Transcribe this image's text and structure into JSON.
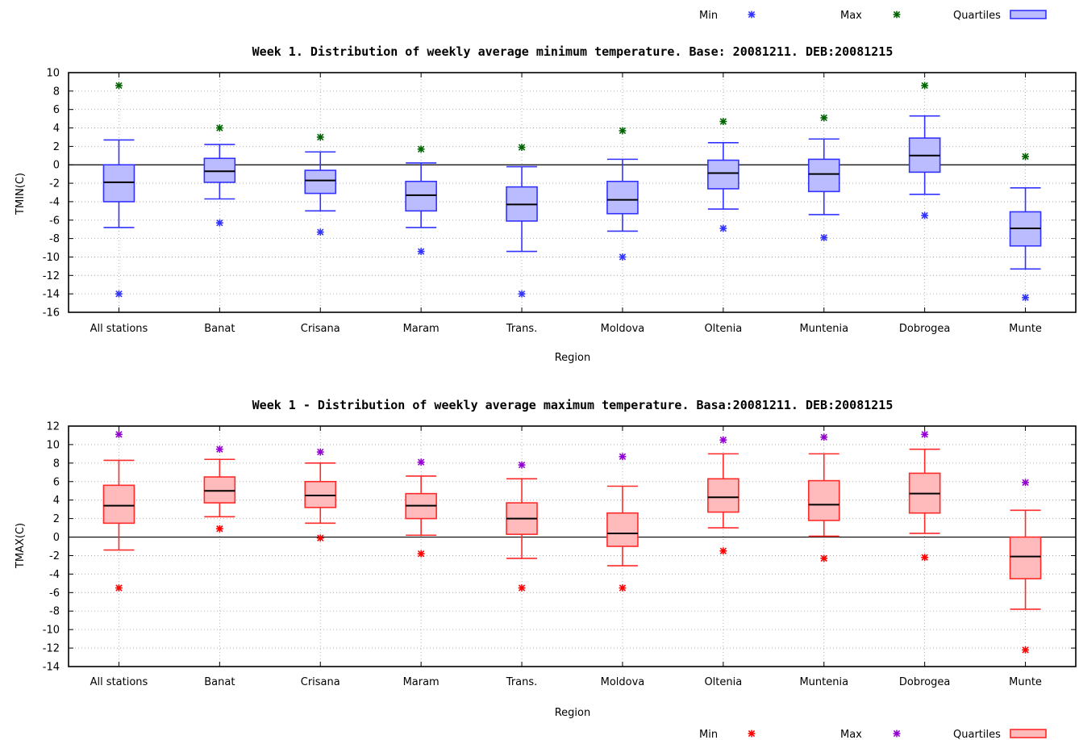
{
  "chart_data": [
    {
      "type": "boxplot",
      "title": "Week 1. Distribution of weekly average minimum temperature. Base: 20081211. DEB:20081215",
      "xlabel": "Region",
      "ylabel": "TMIN(C)",
      "ylim": [
        -16,
        10
      ],
      "yticks": [
        -16,
        -14,
        -12,
        -10,
        -8,
        -6,
        -4,
        -2,
        0,
        2,
        4,
        6,
        8,
        10
      ],
      "grid": true,
      "legend": {
        "position": "top-right",
        "entries": [
          {
            "label": "Min",
            "color": "#3333ff"
          },
          {
            "label": "Max",
            "color": "#006400"
          },
          {
            "label": "Quartiles",
            "color": "#3333ff",
            "fill": "#bbbbff"
          }
        ]
      },
      "box_stroke": "#3333ff",
      "box_fill": "#bbbbff",
      "min_color": "#3333ff",
      "max_color": "#006400",
      "categories": [
        "All stations",
        "Banat",
        "Crisana",
        "Maram",
        "Trans.",
        "Moldova",
        "Oltenia",
        "Muntenia",
        "Dobrogea",
        "Munte"
      ],
      "boxes": [
        {
          "min": -14.0,
          "wlo": -6.8,
          "q1": -4.0,
          "median": -1.9,
          "q3": 0.0,
          "whi": 2.7,
          "max": 8.6
        },
        {
          "min": -6.3,
          "wlo": -3.7,
          "q1": -1.9,
          "median": -0.7,
          "q3": 0.7,
          "whi": 2.2,
          "max": 4.0
        },
        {
          "min": -7.3,
          "wlo": -5.0,
          "q1": -3.1,
          "median": -1.7,
          "q3": -0.6,
          "whi": 1.4,
          "max": 3.0
        },
        {
          "min": -9.4,
          "wlo": -6.8,
          "q1": -5.0,
          "median": -3.3,
          "q3": -1.8,
          "whi": 0.2,
          "max": 1.7
        },
        {
          "min": -14.0,
          "wlo": -9.4,
          "q1": -6.1,
          "median": -4.3,
          "q3": -2.4,
          "whi": -0.2,
          "max": 1.9
        },
        {
          "min": -10.0,
          "wlo": -7.2,
          "q1": -5.3,
          "median": -3.8,
          "q3": -1.8,
          "whi": 0.6,
          "max": 3.7
        },
        {
          "min": -6.9,
          "wlo": -4.8,
          "q1": -2.6,
          "median": -0.9,
          "q3": 0.5,
          "whi": 2.4,
          "max": 4.7
        },
        {
          "min": -7.9,
          "wlo": -5.4,
          "q1": -2.9,
          "median": -1.0,
          "q3": 0.6,
          "whi": 2.8,
          "max": 5.1
        },
        {
          "min": -5.5,
          "wlo": -3.2,
          "q1": -0.8,
          "median": 1.0,
          "q3": 2.9,
          "whi": 5.3,
          "max": 8.6
        },
        {
          "min": -14.4,
          "wlo": -11.3,
          "q1": -8.8,
          "median": -6.9,
          "q3": -5.1,
          "whi": -2.5,
          "max": 0.9
        }
      ]
    },
    {
      "type": "boxplot",
      "title": "Week 1 - Distribution of weekly average maximum temperature. Basa:20081211. DEB:20081215",
      "xlabel": "Region",
      "ylabel": "TMAX(C)",
      "ylim": [
        -14,
        12
      ],
      "yticks": [
        -14,
        -12,
        -10,
        -8,
        -6,
        -4,
        -2,
        0,
        2,
        4,
        6,
        8,
        10,
        12
      ],
      "grid": true,
      "legend": {
        "position": "bottom-right",
        "entries": [
          {
            "label": "Min",
            "color": "#ff0000"
          },
          {
            "label": "Max",
            "color": "#9400d3"
          },
          {
            "label": "Quartiles",
            "color": "#ff2a2a",
            "fill": "#ffbbbb"
          }
        ]
      },
      "box_stroke": "#ff2a2a",
      "box_fill": "#ffbbbb",
      "min_color": "#ff0000",
      "max_color": "#9400d3",
      "categories": [
        "All stations",
        "Banat",
        "Crisana",
        "Maram",
        "Trans.",
        "Moldova",
        "Oltenia",
        "Muntenia",
        "Dobrogea",
        "Munte"
      ],
      "boxes": [
        {
          "min": -5.5,
          "wlo": -1.4,
          "q1": 1.5,
          "median": 3.4,
          "q3": 5.6,
          "whi": 8.3,
          "max": 11.1
        },
        {
          "min": 0.9,
          "wlo": 2.2,
          "q1": 3.7,
          "median": 5.0,
          "q3": 6.5,
          "whi": 8.4,
          "max": 9.5
        },
        {
          "min": -0.1,
          "wlo": 1.5,
          "q1": 3.2,
          "median": 4.5,
          "q3": 6.0,
          "whi": 8.0,
          "max": 9.2
        },
        {
          "min": -1.8,
          "wlo": 0.2,
          "q1": 2.0,
          "median": 3.4,
          "q3": 4.7,
          "whi": 6.6,
          "max": 8.1
        },
        {
          "min": -5.5,
          "wlo": -2.3,
          "q1": 0.3,
          "median": 2.0,
          "q3": 3.7,
          "whi": 6.3,
          "max": 7.8
        },
        {
          "min": -5.5,
          "wlo": -3.1,
          "q1": -1.0,
          "median": 0.4,
          "q3": 2.6,
          "whi": 5.5,
          "max": 8.7
        },
        {
          "min": -1.5,
          "wlo": 1.0,
          "q1": 2.7,
          "median": 4.3,
          "q3": 6.3,
          "whi": 9.0,
          "max": 10.5
        },
        {
          "min": -2.3,
          "wlo": 0.1,
          "q1": 1.8,
          "median": 3.5,
          "q3": 6.1,
          "whi": 9.0,
          "max": 10.8
        },
        {
          "min": -2.2,
          "wlo": 0.4,
          "q1": 2.6,
          "median": 4.7,
          "q3": 6.9,
          "whi": 9.5,
          "max": 11.1
        },
        {
          "min": -12.2,
          "wlo": -7.8,
          "q1": -4.5,
          "median": -2.1,
          "q3": 0.0,
          "whi": 2.9,
          "max": 5.9
        }
      ]
    }
  ]
}
